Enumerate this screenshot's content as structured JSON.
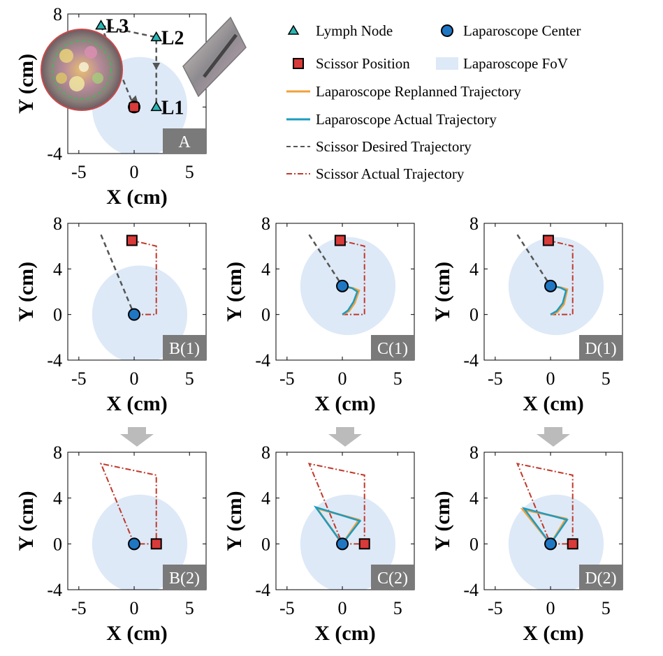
{
  "colors": {
    "fov": "#dde9f7",
    "lymph_node": "#2bb6b3",
    "laparoscope_center": "#1f77c4",
    "scissor_position": "#d93a3a",
    "replanned": "#f2a03a",
    "actual_lap": "#1a9cc0",
    "scissor_desired": "#555555",
    "scissor_actual": "#c0392b",
    "panel_badge": "#7a7a7a",
    "arrow": "#bbbbbb"
  },
  "legend": {
    "items": [
      {
        "label": "Lymph Node",
        "marker": "triangle",
        "color": "#2bb6b3"
      },
      {
        "label": "Laparoscope Center",
        "marker": "circle",
        "color": "#1f77c4"
      },
      {
        "label": "Scissor Position",
        "marker": "square",
        "color": "#d93a3a"
      },
      {
        "label": "Laparoscope FoV",
        "marker": "patch",
        "color": "#dde9f7"
      },
      {
        "label": "Laparoscope Replanned Trajectory",
        "marker": "line",
        "color": "#f2a03a"
      },
      {
        "label": "Laparoscope Actual Trajectory",
        "marker": "line",
        "color": "#1a9cc0"
      },
      {
        "label": "Scissor Desired Trajectory",
        "marker": "dashed",
        "color": "#555555"
      },
      {
        "label": "Scissor Actual Trajectory",
        "marker": "dashdot",
        "color": "#c0392b"
      }
    ]
  },
  "chart_data": [
    {
      "type": "scatter",
      "panel_label": "A",
      "xlabel": "X (cm)",
      "ylabel": "Y (cm)",
      "xlim": [
        -6,
        6.5
      ],
      "ylim": [
        -4,
        8
      ],
      "xticks": [
        -5,
        0,
        5
      ],
      "yticks": [
        -4,
        0,
        4,
        8
      ],
      "ytick_labels": [
        "-4",
        "",
        "",
        "8"
      ],
      "fov": {
        "cx": 0.5,
        "cy": 0,
        "r": 4.3
      },
      "lymph_nodes": [
        {
          "name": "L3",
          "x": -3,
          "y": 7
        },
        {
          "name": "L2",
          "x": 2,
          "y": 6
        },
        {
          "name": "L1",
          "x": 2,
          "y": 0
        }
      ],
      "laparoscope_center": {
        "x": 0,
        "y": 0
      },
      "scissor_position": {
        "x": 0,
        "y": 0
      },
      "scissor_desired": [
        [
          -3,
          7
        ],
        [
          0,
          0
        ]
      ],
      "node_path": [
        [
          -3,
          7
        ],
        [
          2,
          6
        ],
        [
          2,
          0
        ]
      ]
    },
    {
      "type": "line",
      "panel_label": "B(1)",
      "xlabel": "X (cm)",
      "ylabel": "Y (cm)",
      "xlim": [
        -6,
        6.5
      ],
      "ylim": [
        -4,
        8
      ],
      "xticks": [
        -5,
        0,
        5
      ],
      "yticks": [
        -4,
        0,
        4,
        8
      ],
      "fov": {
        "cx": 0.5,
        "cy": 0,
        "r": 4.3
      },
      "laparoscope_center": {
        "x": 0,
        "y": 0
      },
      "scissor_position": {
        "x": -0.2,
        "y": 6.5
      },
      "scissor_desired": [
        [
          -3,
          7
        ],
        [
          0,
          0
        ]
      ],
      "scissor_actual": [
        [
          0,
          0
        ],
        [
          2,
          0
        ],
        [
          2,
          6
        ],
        [
          -0.2,
          6.5
        ]
      ],
      "replanned": [],
      "actual_lap": []
    },
    {
      "type": "line",
      "panel_label": "C(1)",
      "xlabel": "X (cm)",
      "ylabel": "Y (cm)",
      "xlim": [
        -6,
        6.5
      ],
      "ylim": [
        -4,
        8
      ],
      "xticks": [
        -5,
        0,
        5
      ],
      "yticks": [
        -4,
        0,
        4,
        8
      ],
      "fov": {
        "cx": 0.5,
        "cy": 2.5,
        "r": 4.3
      },
      "laparoscope_center": {
        "x": 0,
        "y": 2.5
      },
      "scissor_position": {
        "x": -0.2,
        "y": 6.5
      },
      "scissor_desired": [
        [
          -3,
          7
        ],
        [
          0,
          2.5
        ]
      ],
      "scissor_actual": [
        [
          0,
          0
        ],
        [
          2,
          0
        ],
        [
          2,
          6
        ],
        [
          -0.2,
          6.5
        ]
      ],
      "replanned": [
        [
          0,
          0
        ],
        [
          0.6,
          0.3
        ],
        [
          1.1,
          1.0
        ],
        [
          1.5,
          2.1
        ],
        [
          1.0,
          2.3
        ],
        [
          0.4,
          2.4
        ],
        [
          0,
          2.5
        ]
      ],
      "actual_lap": [
        [
          0,
          0
        ],
        [
          0.5,
          0.35
        ],
        [
          1.0,
          1.1
        ],
        [
          1.35,
          2.0
        ],
        [
          0.9,
          2.3
        ],
        [
          0.4,
          2.45
        ],
        [
          0,
          2.5
        ]
      ]
    },
    {
      "type": "line",
      "panel_label": "D(1)",
      "xlabel": "X (cm)",
      "ylabel": "Y (cm)",
      "xlim": [
        -6,
        6.5
      ],
      "ylim": [
        -4,
        8
      ],
      "xticks": [
        -5,
        0,
        5
      ],
      "yticks": [
        -4,
        0,
        4,
        8
      ],
      "fov": {
        "cx": 0.5,
        "cy": 2.5,
        "r": 4.3
      },
      "laparoscope_center": {
        "x": 0,
        "y": 2.5
      },
      "scissor_position": {
        "x": -0.2,
        "y": 6.5
      },
      "scissor_desired": [
        [
          -3,
          7
        ],
        [
          0,
          2.5
        ]
      ],
      "scissor_actual": [
        [
          0,
          0
        ],
        [
          2,
          0
        ],
        [
          2,
          6
        ],
        [
          -0.2,
          6.5
        ]
      ],
      "replanned": [
        [
          0,
          0
        ],
        [
          0.6,
          0.2
        ],
        [
          1.2,
          0.9
        ],
        [
          1.5,
          2.2
        ],
        [
          1.0,
          2.35
        ],
        [
          0.4,
          2.45
        ],
        [
          0,
          2.5
        ]
      ],
      "actual_lap": [
        [
          0,
          0
        ],
        [
          0.55,
          0.3
        ],
        [
          1.1,
          1.0
        ],
        [
          1.4,
          2.1
        ],
        [
          0.9,
          2.35
        ],
        [
          0.4,
          2.45
        ],
        [
          0,
          2.5
        ]
      ]
    },
    {
      "type": "line",
      "panel_label": "B(2)",
      "xlabel": "X (cm)",
      "ylabel": "Y (cm)",
      "xlim": [
        -6,
        6.5
      ],
      "ylim": [
        -4,
        8
      ],
      "xticks": [
        -5,
        0,
        5
      ],
      "yticks": [
        -4,
        0,
        4,
        8
      ],
      "fov": {
        "cx": 0.5,
        "cy": 0,
        "r": 4.3
      },
      "laparoscope_center": {
        "x": 0,
        "y": 0
      },
      "scissor_position": {
        "x": 2,
        "y": 0
      },
      "scissor_desired": [],
      "scissor_actual": [
        [
          0,
          0
        ],
        [
          -3,
          7
        ],
        [
          2,
          6
        ],
        [
          2,
          0
        ],
        [
          0,
          0
        ]
      ],
      "replanned": [],
      "actual_lap": []
    },
    {
      "type": "line",
      "panel_label": "C(2)",
      "xlabel": "X (cm)",
      "ylabel": "Y (cm)",
      "xlim": [
        -6,
        6.5
      ],
      "ylim": [
        -4,
        8
      ],
      "xticks": [
        -5,
        0,
        5
      ],
      "yticks": [
        -4,
        0,
        4,
        8
      ],
      "fov": {
        "cx": 0.5,
        "cy": 0,
        "r": 4.3
      },
      "laparoscope_center": {
        "x": 0,
        "y": 0
      },
      "scissor_position": {
        "x": 2,
        "y": 0
      },
      "scissor_desired": [],
      "scissor_actual": [
        [
          2,
          0
        ],
        [
          2,
          6
        ],
        [
          -3,
          7
        ],
        [
          0,
          0
        ],
        [
          2,
          0
        ]
      ],
      "replanned": [
        [
          0,
          0
        ],
        [
          -2.3,
          3.1
        ],
        [
          1.5,
          2.1
        ],
        [
          0,
          0
        ]
      ],
      "actual_lap": [
        [
          0,
          0
        ],
        [
          -2.4,
          3.2
        ],
        [
          1.6,
          2.0
        ],
        [
          0,
          0
        ]
      ]
    },
    {
      "type": "line",
      "panel_label": "D(2)",
      "xlabel": "X (cm)",
      "ylabel": "Y (cm)",
      "xlim": [
        -6,
        6.5
      ],
      "ylim": [
        -4,
        8
      ],
      "xticks": [
        -5,
        0,
        5
      ],
      "yticks": [
        -4,
        0,
        4,
        8
      ],
      "fov": {
        "cx": 0.5,
        "cy": 0,
        "r": 4.3
      },
      "laparoscope_center": {
        "x": 0,
        "y": 0
      },
      "scissor_position": {
        "x": 2,
        "y": 0
      },
      "scissor_desired": [],
      "scissor_actual": [
        [
          2,
          0
        ],
        [
          2,
          6
        ],
        [
          -3,
          7
        ],
        [
          0,
          0
        ],
        [
          2,
          0
        ]
      ],
      "replanned": [
        [
          0,
          0
        ],
        [
          -2.5,
          3.0
        ],
        [
          1.4,
          2.2
        ],
        [
          0,
          0
        ]
      ],
      "actual_lap": [
        [
          0,
          0
        ],
        [
          -2.4,
          3.1
        ],
        [
          1.5,
          2.1
        ],
        [
          0,
          0
        ]
      ]
    }
  ]
}
